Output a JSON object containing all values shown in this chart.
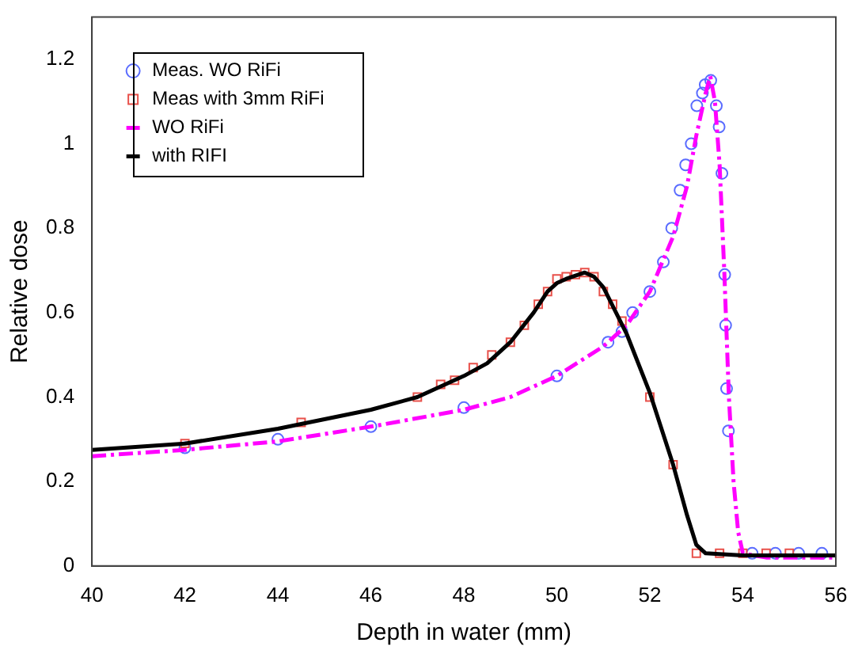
{
  "chart_data": {
    "type": "line",
    "xlabel": "Depth in water (mm)",
    "ylabel": "Relative dose",
    "xlim": [
      40,
      56
    ],
    "xticks": [
      40,
      42,
      44,
      46,
      48,
      50,
      52,
      54,
      56
    ],
    "ylim": [
      0,
      1.3
    ],
    "yticks": [
      0,
      0.2,
      0.4,
      0.6,
      0.8,
      1,
      1.2
    ],
    "grid": false,
    "legend": "top left",
    "series": [
      {
        "name": "Meas. WO RiFi",
        "type": "scatter",
        "marker": "circle",
        "color": "#5a6cff",
        "x": [
          42,
          44,
          46,
          48,
          50,
          51.1,
          51.4,
          51.63,
          52.0,
          52.29,
          52.47,
          52.65,
          52.77,
          52.89,
          53.01,
          53.13,
          53.19,
          53.31,
          53.43,
          53.49,
          53.55,
          53.61,
          53.63,
          53.65,
          53.69,
          54.2,
          54.7,
          55.2,
          55.7
        ],
        "values": [
          0.28,
          0.3,
          0.33,
          0.375,
          0.45,
          0.53,
          0.555,
          0.6,
          0.65,
          0.72,
          0.8,
          0.89,
          0.95,
          1.0,
          1.09,
          1.12,
          1.14,
          1.15,
          1.09,
          1.04,
          0.93,
          0.69,
          0.57,
          0.42,
          0.32,
          0.03,
          0.03,
          0.03,
          0.03
        ]
      },
      {
        "name": "Meas with 3mm RiFi",
        "type": "scatter",
        "marker": "square",
        "color": "#e8504a",
        "x": [
          42,
          44.5,
          47,
          47.5,
          47.8,
          48.2,
          48.6,
          49,
          49.3,
          49.6,
          49.8,
          50,
          50.2,
          50.4,
          50.6,
          50.8,
          51,
          51.2,
          51.4,
          52,
          52.5,
          53,
          53.5,
          54,
          54.5,
          55
        ],
        "values": [
          0.29,
          0.34,
          0.4,
          0.43,
          0.44,
          0.47,
          0.5,
          0.53,
          0.57,
          0.62,
          0.65,
          0.68,
          0.685,
          0.69,
          0.695,
          0.685,
          0.65,
          0.62,
          0.58,
          0.4,
          0.24,
          0.03,
          0.03,
          0.03,
          0.03,
          0.03
        ]
      },
      {
        "name": "WO RiFi",
        "type": "line",
        "marker": "none",
        "line_style": "dashed",
        "color": "#ff00ff",
        "x": [
          40,
          42,
          44,
          46,
          48,
          49,
          50,
          51,
          51.5,
          52,
          52.5,
          52.8,
          53,
          53.2,
          53.3,
          53.4,
          53.5,
          53.6,
          53.7,
          53.8,
          53.9,
          54,
          54.5,
          56
        ],
        "values": [
          0.26,
          0.275,
          0.295,
          0.33,
          0.37,
          0.4,
          0.45,
          0.52,
          0.57,
          0.65,
          0.78,
          0.9,
          1.02,
          1.12,
          1.16,
          1.1,
          0.95,
          0.7,
          0.4,
          0.2,
          0.08,
          0.03,
          0.02,
          0.02
        ]
      },
      {
        "name": "with RIFI",
        "type": "line",
        "marker": "none",
        "line_style": "solid",
        "color": "#000000",
        "x": [
          40,
          42,
          44,
          46,
          47,
          48,
          48.5,
          49,
          49.5,
          49.8,
          50,
          50.2,
          50.6,
          50.8,
          51,
          51.5,
          52,
          52.5,
          52.8,
          53,
          53.2,
          54,
          56
        ],
        "values": [
          0.275,
          0.29,
          0.325,
          0.37,
          0.4,
          0.45,
          0.48,
          0.53,
          0.6,
          0.65,
          0.67,
          0.68,
          0.695,
          0.685,
          0.66,
          0.55,
          0.41,
          0.24,
          0.12,
          0.05,
          0.03,
          0.025,
          0.025
        ]
      }
    ]
  }
}
